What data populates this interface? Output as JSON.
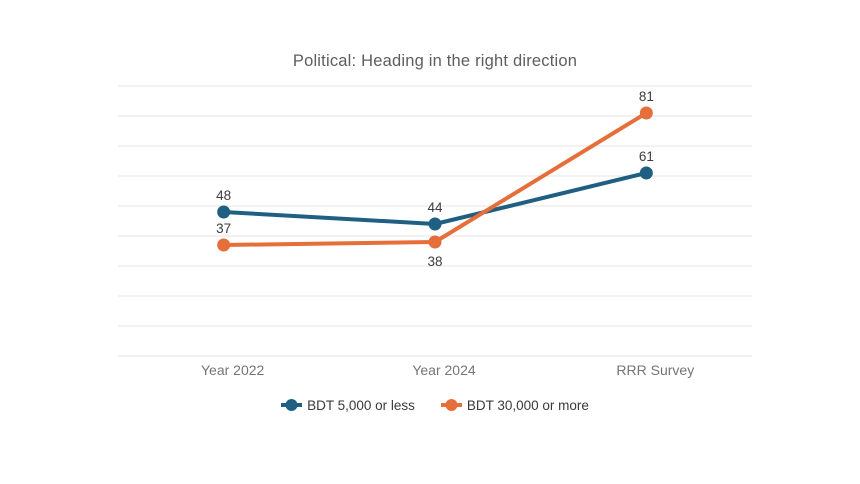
{
  "page": {
    "background": "#ffffff"
  },
  "chart_data": {
    "type": "line",
    "title": "Political: Heading in the right direction",
    "categories": [
      "Year 2022",
      "Year 2024",
      "RRR Survey"
    ],
    "series": [
      {
        "name": "BDT 5,000 or less",
        "color": "#1f5f82",
        "values": [
          48,
          44,
          61
        ],
        "data_label_positions": [
          "above",
          "above",
          "above"
        ]
      },
      {
        "name": "BDT 30,000 or more",
        "color": "#e56e3a",
        "values": [
          37,
          38,
          81
        ],
        "data_label_positions": [
          "above",
          "below",
          "above"
        ]
      }
    ],
    "ylim": [
      0,
      90
    ],
    "grid_step": 10,
    "gridlines": "horizontal",
    "y_axis_tick_labels": "hidden",
    "data_labels": "visible",
    "legend_position": "bottom",
    "xlabel": "",
    "ylabel": ""
  },
  "colors": {
    "gridline": "#e4e4e4",
    "title_text": "#5e5e5e",
    "axis_label_text": "#757575",
    "data_label_text": "#3d3d3d",
    "legend_text": "#3a3a3a"
  }
}
